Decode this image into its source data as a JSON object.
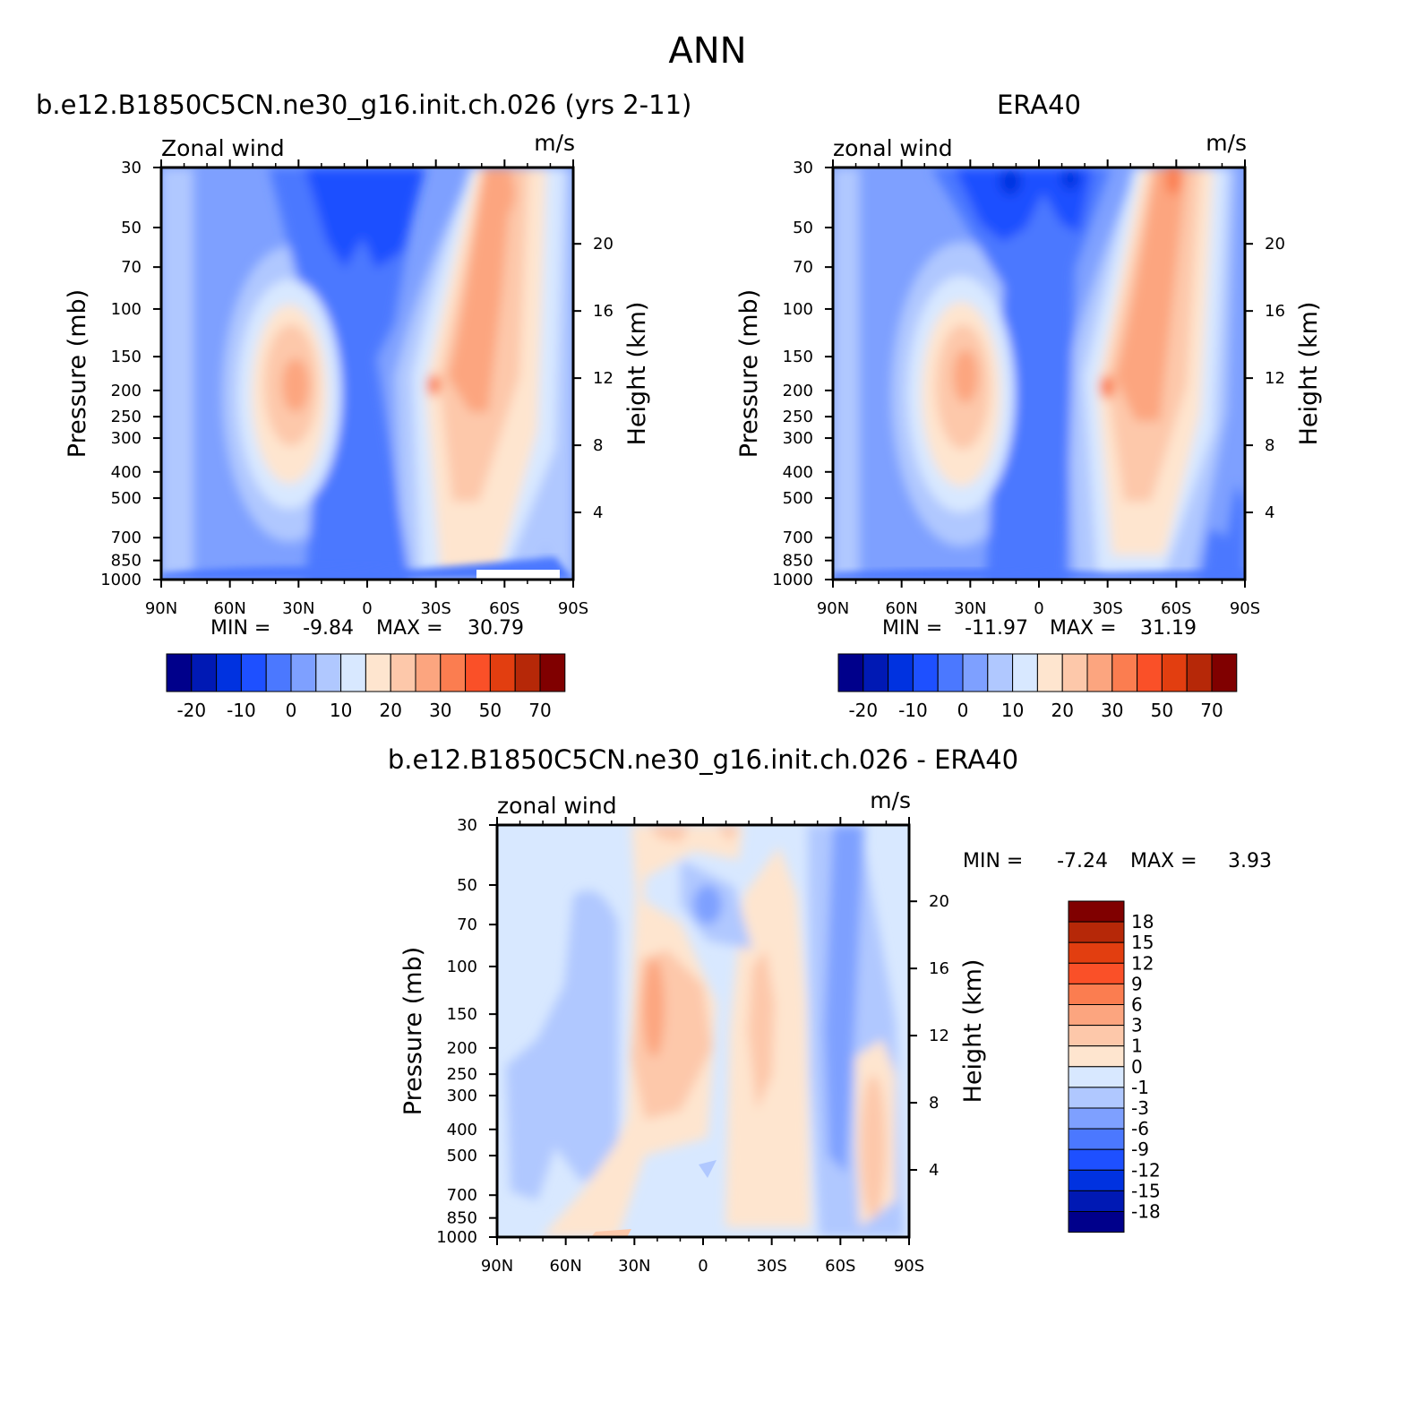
{
  "figure": {
    "title": "ANN"
  },
  "chart_data": [
    {
      "type": "heatmap",
      "title": "b.e12.B1850C5CN.ne30_g16.init.ch.026 (yrs 2-11)",
      "variable_label": "Zonal wind",
      "units": "m/s",
      "xlabel": "",
      "ylabel": "Pressure (mb)",
      "ylabel_right": "Height (km)",
      "x_ticks": [
        "90N",
        "60N",
        "30N",
        "0",
        "30S",
        "60S",
        "90S"
      ],
      "x_ticks_value": [
        90,
        60,
        30,
        0,
        -30,
        -60,
        -90
      ],
      "y_ticks": [
        30,
        50,
        70,
        100,
        150,
        200,
        250,
        300,
        400,
        500,
        700,
        850,
        1000
      ],
      "y_right_ticks": [
        20,
        16,
        12,
        8,
        4
      ],
      "xlim": [
        90,
        -90
      ],
      "ylim": [
        1000,
        30
      ],
      "y_scale": "log",
      "min_label": "MIN =",
      "min": "-9.84",
      "max_label": "MAX =",
      "max": "30.79",
      "colorbar": {
        "orientation": "horizontal",
        "labels": [
          "-20",
          "-10",
          "0",
          "10",
          "20",
          "30",
          "50",
          "70"
        ],
        "colors": [
          "#00008b",
          "#0019b4",
          "#0032e0",
          "#1e50ff",
          "#4b78ff",
          "#7ea0ff",
          "#b0c8ff",
          "#d8e8ff",
          "#fee5cf",
          "#fdc8aa",
          "#fca57f",
          "#fb7d50",
          "#fa5028",
          "#e23e10",
          "#b62808",
          "#800000"
        ]
      },
      "features": [
        {
          "lat": -50,
          "p": 200,
          "value": 30.79,
          "desc": "southern jet core"
        },
        {
          "lat": 30,
          "p": 200,
          "value": 24,
          "desc": "northern jet core"
        },
        {
          "lat": 0,
          "p": 30,
          "value": -9.84,
          "desc": "tropical stratospheric easterlies"
        }
      ]
    },
    {
      "type": "heatmap",
      "title": "ERA40",
      "variable_label": "zonal wind",
      "units": "m/s",
      "xlabel": "",
      "ylabel": "Pressure (mb)",
      "ylabel_right": "Height (km)",
      "x_ticks": [
        "90N",
        "60N",
        "30N",
        "0",
        "30S",
        "60S",
        "90S"
      ],
      "x_ticks_value": [
        90,
        60,
        30,
        0,
        -30,
        -60,
        -90
      ],
      "y_ticks": [
        30,
        50,
        70,
        100,
        150,
        200,
        250,
        300,
        400,
        500,
        700,
        850,
        1000
      ],
      "y_right_ticks": [
        20,
        16,
        12,
        8,
        4
      ],
      "xlim": [
        90,
        -90
      ],
      "ylim": [
        1000,
        30
      ],
      "y_scale": "log",
      "min_label": "MIN =",
      "min": "-11.97",
      "max_label": "MAX =",
      "max": "31.19",
      "colorbar": {
        "orientation": "horizontal",
        "labels": [
          "-20",
          "-10",
          "0",
          "10",
          "20",
          "30",
          "50",
          "70"
        ],
        "colors": [
          "#00008b",
          "#0019b4",
          "#0032e0",
          "#1e50ff",
          "#4b78ff",
          "#7ea0ff",
          "#b0c8ff",
          "#d8e8ff",
          "#fee5cf",
          "#fdc8aa",
          "#fca57f",
          "#fb7d50",
          "#fa5028",
          "#e23e10",
          "#b62808",
          "#800000"
        ]
      },
      "features": [
        {
          "lat": -45,
          "p": 200,
          "value": 31.19,
          "desc": "southern jet core"
        },
        {
          "lat": 35,
          "p": 200,
          "value": 25,
          "desc": "northern jet core"
        },
        {
          "lat": 0,
          "p": 30,
          "value": -11.97,
          "desc": "tropical stratospheric easterlies"
        }
      ]
    },
    {
      "type": "heatmap",
      "title": "b.e12.B1850C5CN.ne30_g16.init.ch.026 - ERA40",
      "variable_label": "zonal wind",
      "units": "m/s",
      "xlabel": "",
      "ylabel": "Pressure (mb)",
      "ylabel_right": "Height (km)",
      "x_ticks": [
        "90N",
        "60N",
        "30N",
        "0",
        "30S",
        "60S",
        "90S"
      ],
      "x_ticks_value": [
        90,
        60,
        30,
        0,
        -30,
        -60,
        -90
      ],
      "y_ticks": [
        30,
        50,
        70,
        100,
        150,
        200,
        250,
        300,
        400,
        500,
        700,
        850,
        1000
      ],
      "y_right_ticks": [
        20,
        16,
        12,
        8,
        4
      ],
      "xlim": [
        90,
        -90
      ],
      "ylim": [
        1000,
        30
      ],
      "y_scale": "log",
      "min_label": "MIN =",
      "min": "-7.24",
      "max_label": "MAX =",
      "max": "3.93",
      "colorbar": {
        "orientation": "vertical",
        "labels": [
          "18",
          "15",
          "12",
          "9",
          "6",
          "3",
          "1",
          "0",
          "-1",
          "-3",
          "-6",
          "-9",
          "-12",
          "-15",
          "-18"
        ],
        "colors": [
          "#800000",
          "#b62808",
          "#e23e10",
          "#fa5028",
          "#fb7d50",
          "#fca57f",
          "#fdc8aa",
          "#fee5cf",
          "#d8e8ff",
          "#b0c8ff",
          "#7ea0ff",
          "#4b78ff",
          "#1e50ff",
          "#0032e0",
          "#0019b4",
          "#00008b"
        ]
      },
      "features": [
        {
          "lat": 20,
          "p": 150,
          "value": 3.93,
          "desc": "positive anomaly north of equator"
        },
        {
          "lat": -60,
          "p": 150,
          "value": -7.24,
          "desc": "negative anomaly near 60S"
        }
      ]
    }
  ]
}
